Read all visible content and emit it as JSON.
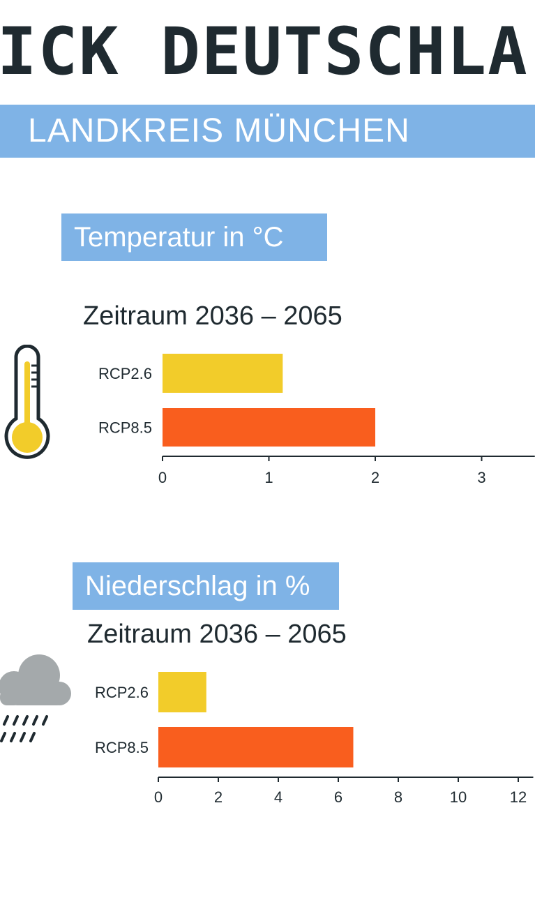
{
  "header": {
    "title": "ICK DEUTSCHLA",
    "subtitle": "LANDKREIS MÜNCHEN"
  },
  "colors": {
    "band": "#7fb3e6",
    "rcp26": "#f2cc2a",
    "rcp85": "#f95e1e",
    "text": "#1f2a30"
  },
  "icons": [
    "thermometer-icon",
    "rain-cloud-icon"
  ],
  "chart_data": [
    {
      "type": "bar",
      "orientation": "horizontal",
      "title": "Temperatur in °C",
      "subtitle": "Zeitraum 2036 – 2065",
      "categories": [
        "RCP2.6",
        "RCP8.5"
      ],
      "values": [
        1.13,
        2.0
      ],
      "xlim": [
        0,
        3.5
      ],
      "xticks": [
        "0",
        "1",
        "2",
        "3"
      ],
      "grid": false
    },
    {
      "type": "bar",
      "orientation": "horizontal",
      "title": "Niederschlag in %",
      "subtitle": "Zeitraum 2036 – 2065",
      "categories": [
        "RCP2.6",
        "RCP8.5"
      ],
      "values": [
        1.6,
        6.5
      ],
      "xlim": [
        0,
        12.5
      ],
      "xticks": [
        "0",
        "2",
        "4",
        "6",
        "8",
        "10",
        "12"
      ],
      "grid": false
    }
  ]
}
